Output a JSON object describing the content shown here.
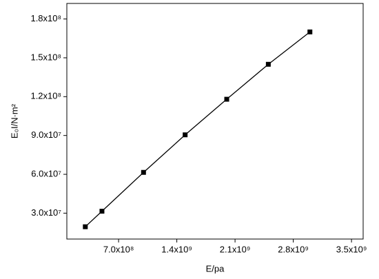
{
  "chart_data": {
    "type": "line",
    "xlabel": "E/pa",
    "ylabel": "E₀I/N·m²",
    "x": [
      300000000.0,
      500000000.0,
      1000000000.0,
      1500000000.0,
      2000000000.0,
      2500000000.0,
      3000000000.0
    ],
    "series": [
      {
        "color": "#000000",
        "values": [
          19500000.0,
          31500000.0,
          61500000.0,
          90500000.0,
          118000000.0,
          145000000.0,
          170000000.0
        ]
      }
    ],
    "xlim": [
      78000000.0,
      3640000000.0
    ],
    "xticks": [
      {
        "value": 700000000.0,
        "label": "7.0x10⁸"
      },
      {
        "value": 1400000000.0,
        "label": "1.4x10⁹"
      },
      {
        "value": 2100000000.0,
        "label": "2.1x10⁹"
      },
      {
        "value": 2800000000.0,
        "label": "2.8x10⁹"
      },
      {
        "value": 3500000000.0,
        "label": "3.5x10⁹"
      }
    ],
    "ylim": [
      10000000.0,
      192000000.0
    ],
    "yticks": [
      {
        "value": 30000000.0,
        "label": "3.0x10⁷"
      },
      {
        "value": 60000000.0,
        "label": "6.0x10⁷"
      },
      {
        "value": 90000000.0,
        "label": "9.0x10⁷"
      },
      {
        "value": 120000000.0,
        "label": "1.2x10⁸"
      },
      {
        "value": 150000000.0,
        "label": "1.5x10⁸"
      },
      {
        "value": 180000000.0,
        "label": "1.8x10⁸"
      }
    ]
  }
}
